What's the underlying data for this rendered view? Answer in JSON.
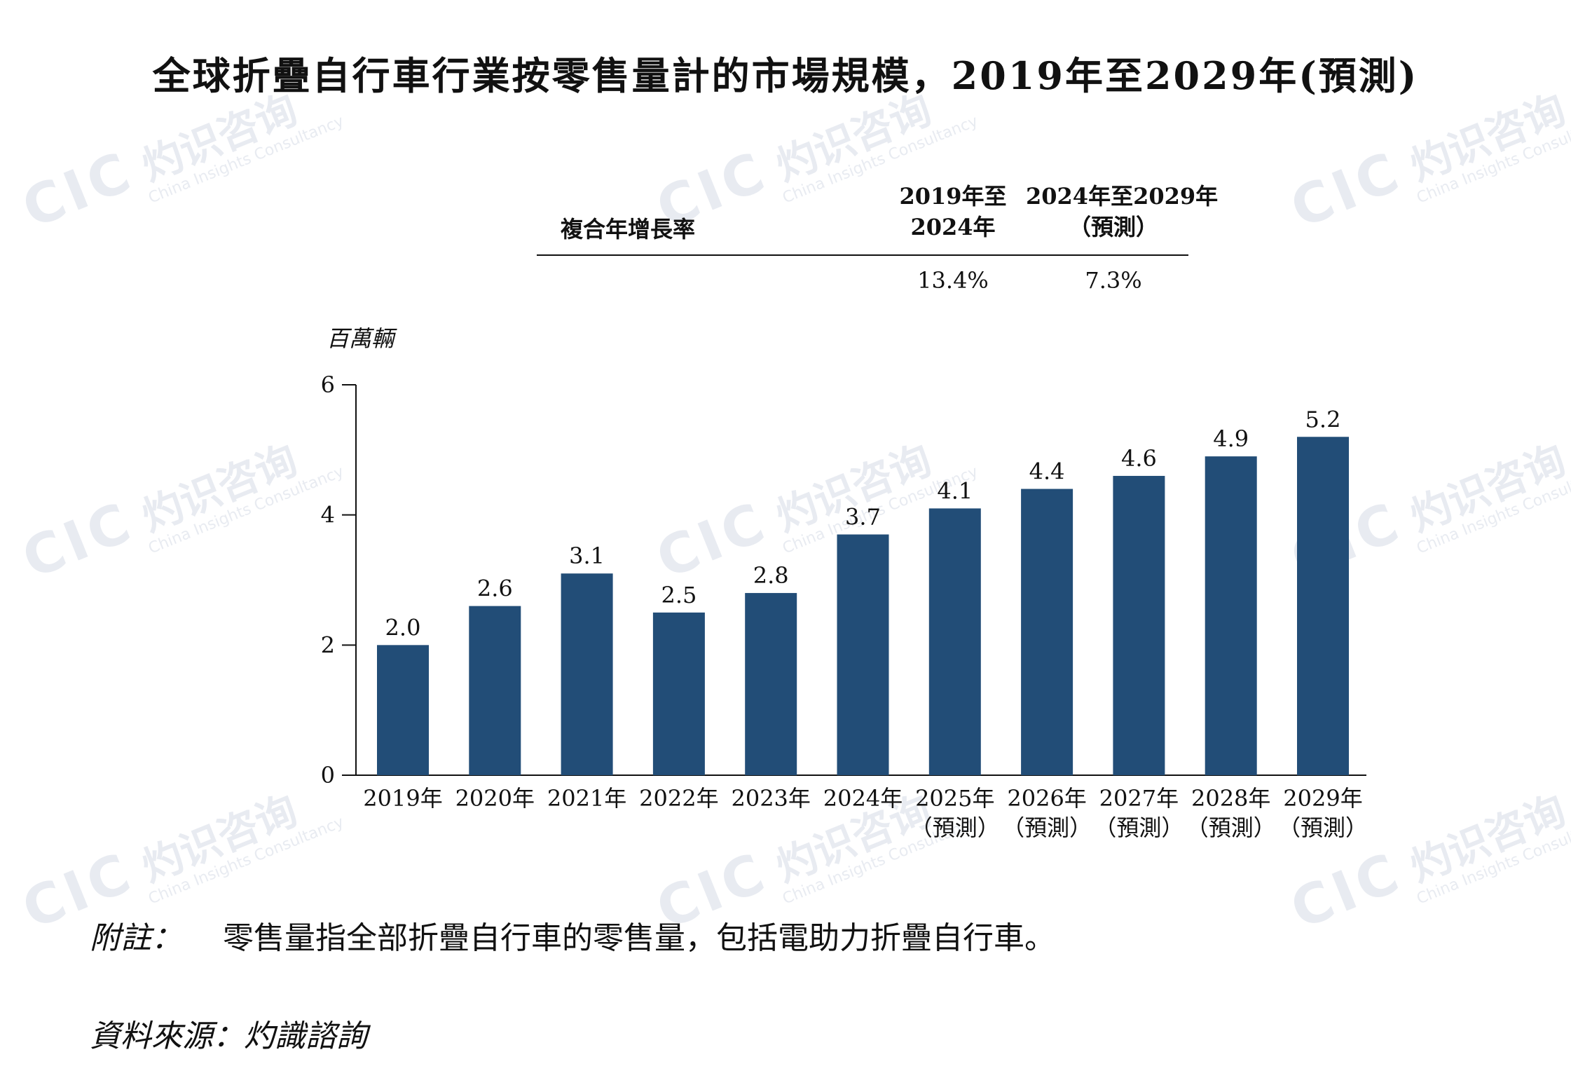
{
  "title": "全球折疊自行車行業按零售量計的市場規模，2019年至2029年(預測)",
  "cagr": {
    "label": "複合年增長率",
    "headers": [
      {
        "line1": "2019年至",
        "line2": "2024年"
      },
      {
        "line1": "2024年至2029年",
        "line2": "（預測）"
      }
    ],
    "values": [
      "13.4%",
      "7.3%"
    ]
  },
  "chart_data": {
    "type": "bar",
    "title": "全球折疊自行車行業按零售量計的市場規模，2019年至2029年(預測)",
    "ylabel": "百萬輛",
    "xlabel": "",
    "ylim": [
      0,
      6
    ],
    "yticks": [
      0,
      2,
      4,
      6
    ],
    "grid": false,
    "legend": "none",
    "bar_color": "#224d77",
    "categories": [
      {
        "year": "2019年",
        "sub": ""
      },
      {
        "year": "2020年",
        "sub": ""
      },
      {
        "year": "2021年",
        "sub": ""
      },
      {
        "year": "2022年",
        "sub": ""
      },
      {
        "year": "2023年",
        "sub": ""
      },
      {
        "year": "2024年",
        "sub": ""
      },
      {
        "year": "2025年",
        "sub": "（預測）"
      },
      {
        "year": "2026年",
        "sub": "（預測）"
      },
      {
        "year": "2027年",
        "sub": "（預測）"
      },
      {
        "year": "2028年",
        "sub": "（預測）"
      },
      {
        "year": "2029年",
        "sub": "（預測）"
      }
    ],
    "values": [
      2.0,
      2.6,
      3.1,
      2.5,
      2.8,
      3.7,
      4.1,
      4.4,
      4.6,
      4.9,
      5.2
    ],
    "value_labels": [
      "2.0",
      "2.6",
      "3.1",
      "2.5",
      "2.8",
      "3.7",
      "4.1",
      "4.4",
      "4.6",
      "4.9",
      "5.2"
    ]
  },
  "note": {
    "label": "附註：",
    "text": "零售量指全部折疊自行車的零售量，包括電助力折疊自行車。"
  },
  "source": "資料來源：灼識諮詢",
  "watermark": {
    "logo": "CIC",
    "cn": "灼识咨询",
    "en": "China Insights Consultancy"
  }
}
